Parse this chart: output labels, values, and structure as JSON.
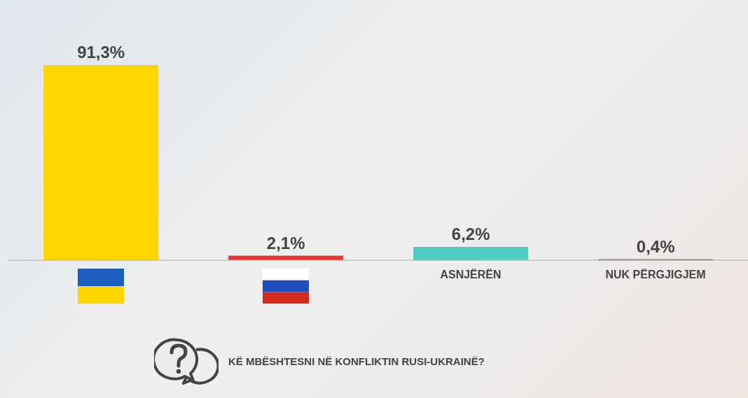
{
  "chart_data": {
    "type": "bar",
    "title": "KË MBËSHTESNI NË KONFLIKTIN RUSI-UKRAINË?",
    "categories": [
      null,
      null,
      "ASNJËRËN",
      "NUK PËRGJIGJEM"
    ],
    "values": [
      91.3,
      2.1,
      6.2,
      0.4
    ],
    "colors": [
      "#ffd500",
      "#e53935",
      "#4ecdc4",
      "#555555"
    ],
    "value_labels": [
      "91,3%",
      "2,1%",
      "6,2%",
      "0,4%"
    ]
  }
}
